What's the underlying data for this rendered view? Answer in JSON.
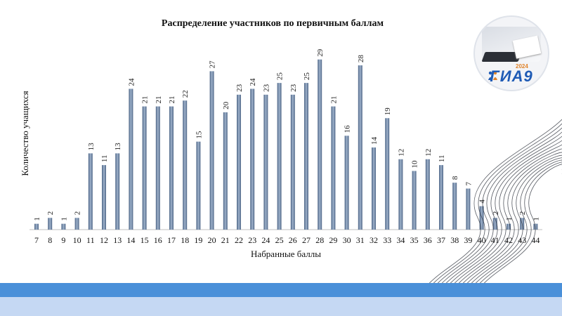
{
  "chart_data": {
    "type": "bar",
    "title": "Распределение участников по первичным баллам",
    "xlabel": "Набранные баллы",
    "ylabel": "Количество учащихся",
    "ylim": [
      0,
      31
    ],
    "grid": false,
    "legend": "none",
    "categories": [
      "7",
      "8",
      "9",
      "10",
      "11",
      "12",
      "13",
      "14",
      "15",
      "16",
      "17",
      "18",
      "19",
      "20",
      "21",
      "22",
      "23",
      "24",
      "25",
      "26",
      "27",
      "28",
      "29",
      "30",
      "31",
      "32",
      "33",
      "34",
      "35",
      "36",
      "37",
      "38",
      "39",
      "40",
      "41",
      "42",
      "43",
      "44"
    ],
    "values": [
      1,
      2,
      1,
      2,
      13,
      11,
      13,
      24,
      21,
      21,
      21,
      22,
      15,
      27,
      20,
      23,
      24,
      23,
      25,
      23,
      25,
      29,
      21,
      16,
      28,
      14,
      19,
      12,
      10,
      12,
      11,
      8,
      7,
      4,
      2,
      1,
      2,
      1
    ],
    "bar_color": "#6f87a8"
  },
  "logo": {
    "text": "ГИА9",
    "year": "2024"
  },
  "colors": {
    "band_dark": "#4a90d9",
    "band_light": "#c5d8f3"
  }
}
